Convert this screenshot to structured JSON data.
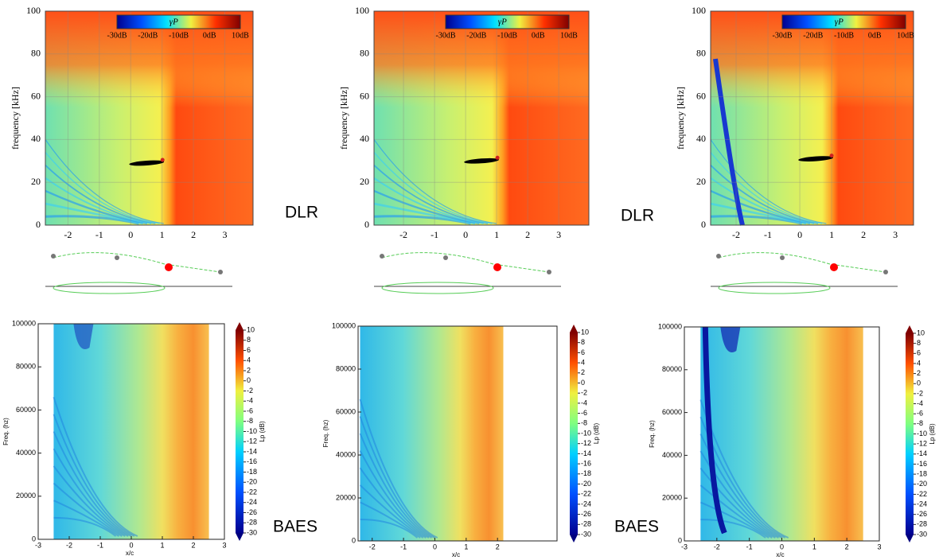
{
  "panels": [
    {
      "dlr": {
        "ylabel": "frequency [kHz]",
        "xlim": [
          -2.72,
          3.9
        ],
        "ylim": [
          0,
          100
        ],
        "xticks": [
          -2,
          -1,
          0,
          1,
          2,
          3
        ],
        "yticks": [
          0,
          20,
          40,
          60,
          80,
          100
        ],
        "colorbar": {
          "symbol": "γP",
          "ticks": [
            "-30dB",
            "-20dB",
            "-10dB",
            "0dB",
            "10dB"
          ]
        }
      },
      "dlr_tag": "DLR",
      "baes": {
        "ylabel": "Freq. (hz)",
        "xlabel": "x/c",
        "xlim": [
          -3,
          3
        ],
        "ylim": [
          0,
          100000
        ],
        "xticks": [
          -3,
          -2,
          -1,
          0,
          1,
          2,
          3
        ],
        "yticks": [
          0,
          20000,
          40000,
          60000,
          80000,
          100000
        ],
        "colorbar_label": "Lp (dB)",
        "colorbar_ticks": [
          10,
          8,
          6,
          4,
          2,
          0,
          -2,
          -4,
          -6,
          -8,
          -10,
          -12,
          -14,
          -16,
          -18,
          -20,
          -22,
          -24,
          -26,
          -28,
          -30
        ]
      },
      "baes_tag": "BAES"
    },
    {
      "dlr": {
        "ylabel": "frequency [kHz]",
        "xlim": [
          -2.95,
          3.97
        ],
        "ylim": [
          0,
          100
        ],
        "xticks": [
          -2,
          -1,
          0,
          1,
          2,
          3
        ],
        "yticks": [
          0,
          20,
          40,
          60,
          80,
          100
        ],
        "colorbar": {
          "symbol": "γP",
          "ticks": [
            "-30dB",
            "-20dB",
            "-10dB",
            "0dB",
            "10dB"
          ]
        }
      },
      "dlr_tag": "DLR",
      "baes": {
        "ylabel": "Freq. (hz)",
        "xlabel": "x/c",
        "xlim": [
          -2.45,
          3.9
        ],
        "ylim": [
          0,
          100000
        ],
        "xticks": [
          -2,
          -1,
          0,
          1,
          2
        ],
        "yticks": [
          0,
          20000,
          40000,
          60000,
          80000,
          100000
        ],
        "colorbar_label": "Lp (dB)",
        "colorbar_ticks": [
          10,
          8,
          6,
          4,
          2,
          0,
          -2,
          -4,
          -6,
          -8,
          -10,
          -12,
          -14,
          -16,
          -18,
          -20,
          -22,
          -24,
          -26,
          -28,
          -30
        ]
      },
      "baes_tag": "BAES"
    },
    {
      "dlr": {
        "ylabel": "frequency [kHz]",
        "xlim": [
          -2.8,
          3.57
        ],
        "ylim": [
          0,
          100
        ],
        "xticks": [
          -2,
          -1,
          0,
          1,
          2,
          3
        ],
        "yticks": [
          0,
          20,
          40,
          60,
          80,
          100
        ],
        "colorbar": {
          "symbol": "γP",
          "ticks": [
            "-30dB",
            "-20dB",
            "-10dB",
            "0dB",
            "10dB"
          ]
        }
      },
      "baes": {
        "ylabel": "Freq. (hz)",
        "xlabel": "x/c",
        "xlim": [
          -3,
          3
        ],
        "ylim": [
          0,
          100000
        ],
        "xticks": [
          -3,
          -2,
          -1,
          0,
          1,
          2,
          3
        ],
        "yticks": [
          0,
          20000,
          40000,
          60000,
          80000,
          100000
        ],
        "colorbar_label": "Lp (dB)",
        "colorbar_ticks": [
          10,
          8,
          6,
          4,
          2,
          0,
          -2,
          -4,
          -6,
          -8,
          -10,
          -12,
          -14,
          -16,
          -18,
          -20,
          -22,
          -24,
          -26,
          -28,
          -30
        ]
      }
    }
  ]
}
